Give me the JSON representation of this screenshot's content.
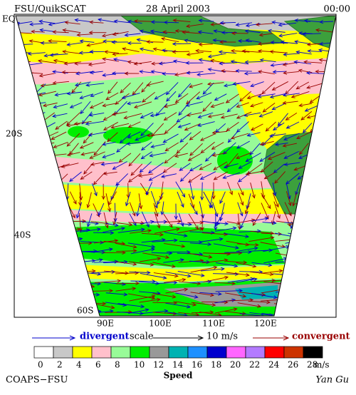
{
  "header": {
    "left": "FSU/QuikSCAT",
    "center": "28 April 2003",
    "right": "00:00"
  },
  "map": {
    "lat_labels": [
      "EQ",
      "20S",
      "40S",
      "60S"
    ],
    "lon_labels": [
      "90E",
      "100E",
      "110E",
      "120E"
    ]
  },
  "legend": {
    "divergent": "divergent",
    "scale": "scale",
    "scale_value": "10 m/s",
    "convergent": "convergent"
  },
  "colorbar": {
    "labels": [
      0,
      2,
      4,
      6,
      8,
      10,
      12,
      14,
      16,
      18,
      20,
      22,
      24,
      26,
      28
    ],
    "unit": "m/s",
    "title": "Speed",
    "colors": [
      "#ffffff",
      "#c8c8c8",
      "#ffff00",
      "#ffc0cb",
      "#98fb98",
      "#00ee00",
      "#999999",
      "#00b2b2",
      "#1e90ff",
      "#0000cd",
      "#ff66ff",
      "#b37bff",
      "#ff0000",
      "#cc3300",
      "#000000"
    ]
  },
  "footer": {
    "left": "COAPS−FSU",
    "right": "Yan Gu"
  }
}
